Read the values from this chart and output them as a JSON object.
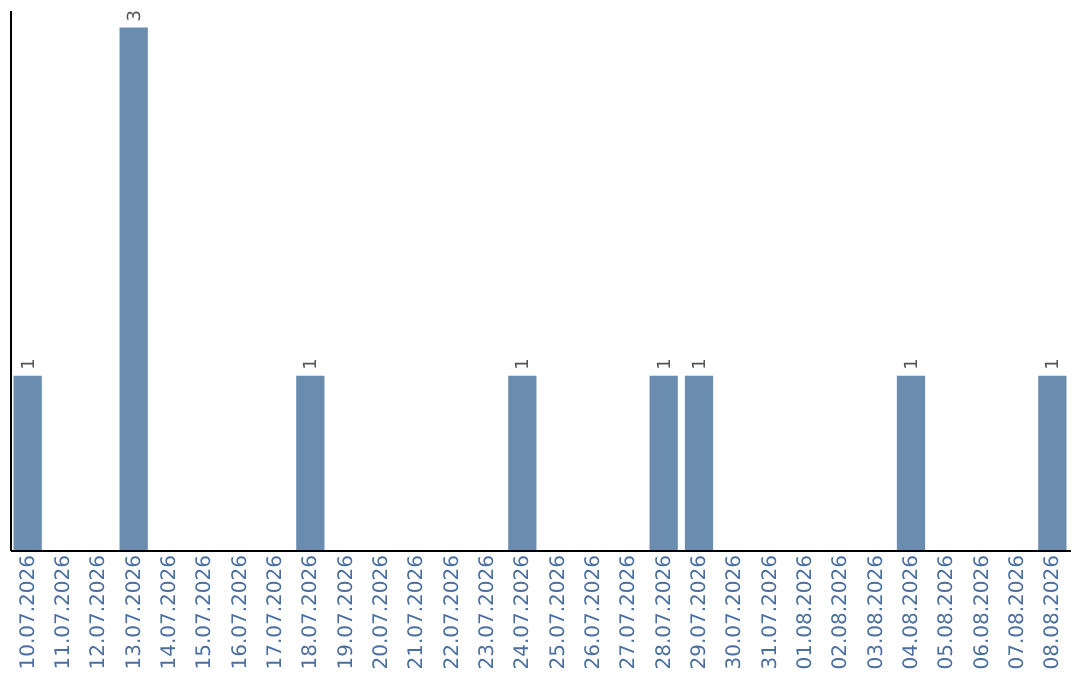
{
  "chart_data": {
    "type": "bar",
    "categories": [
      "10.07.2026",
      "11.07.2026",
      "12.07.2026",
      "13.07.2026",
      "14.07.2026",
      "15.07.2026",
      "16.07.2026",
      "17.07.2026",
      "18.07.2026",
      "19.07.2026",
      "20.07.2026",
      "21.07.2026",
      "22.07.2026",
      "23.07.2026",
      "24.07.2026",
      "25.07.2026",
      "26.07.2026",
      "27.07.2026",
      "28.07.2026",
      "29.07.2026",
      "30.07.2026",
      "31.07.2026",
      "01.08.2026",
      "02.08.2026",
      "03.08.2026",
      "04.08.2026",
      "05.08.2026",
      "06.08.2026",
      "07.08.2026",
      "08.08.2026"
    ],
    "values": [
      1,
      0,
      0,
      3,
      0,
      0,
      0,
      0,
      1,
      0,
      0,
      0,
      0,
      0,
      1,
      0,
      0,
      0,
      1,
      1,
      0,
      0,
      0,
      0,
      0,
      1,
      0,
      0,
      0,
      1
    ],
    "value_labels": [
      "1",
      null,
      null,
      "3",
      null,
      null,
      null,
      null,
      "1",
      null,
      null,
      null,
      null,
      null,
      "1",
      null,
      null,
      null,
      "1",
      "1",
      null,
      null,
      null,
      null,
      null,
      "1",
      null,
      null,
      null,
      "1"
    ],
    "color": "#6a8caf",
    "ylim": [
      0,
      3.1
    ],
    "tick_labels": "x",
    "grid": false
  }
}
